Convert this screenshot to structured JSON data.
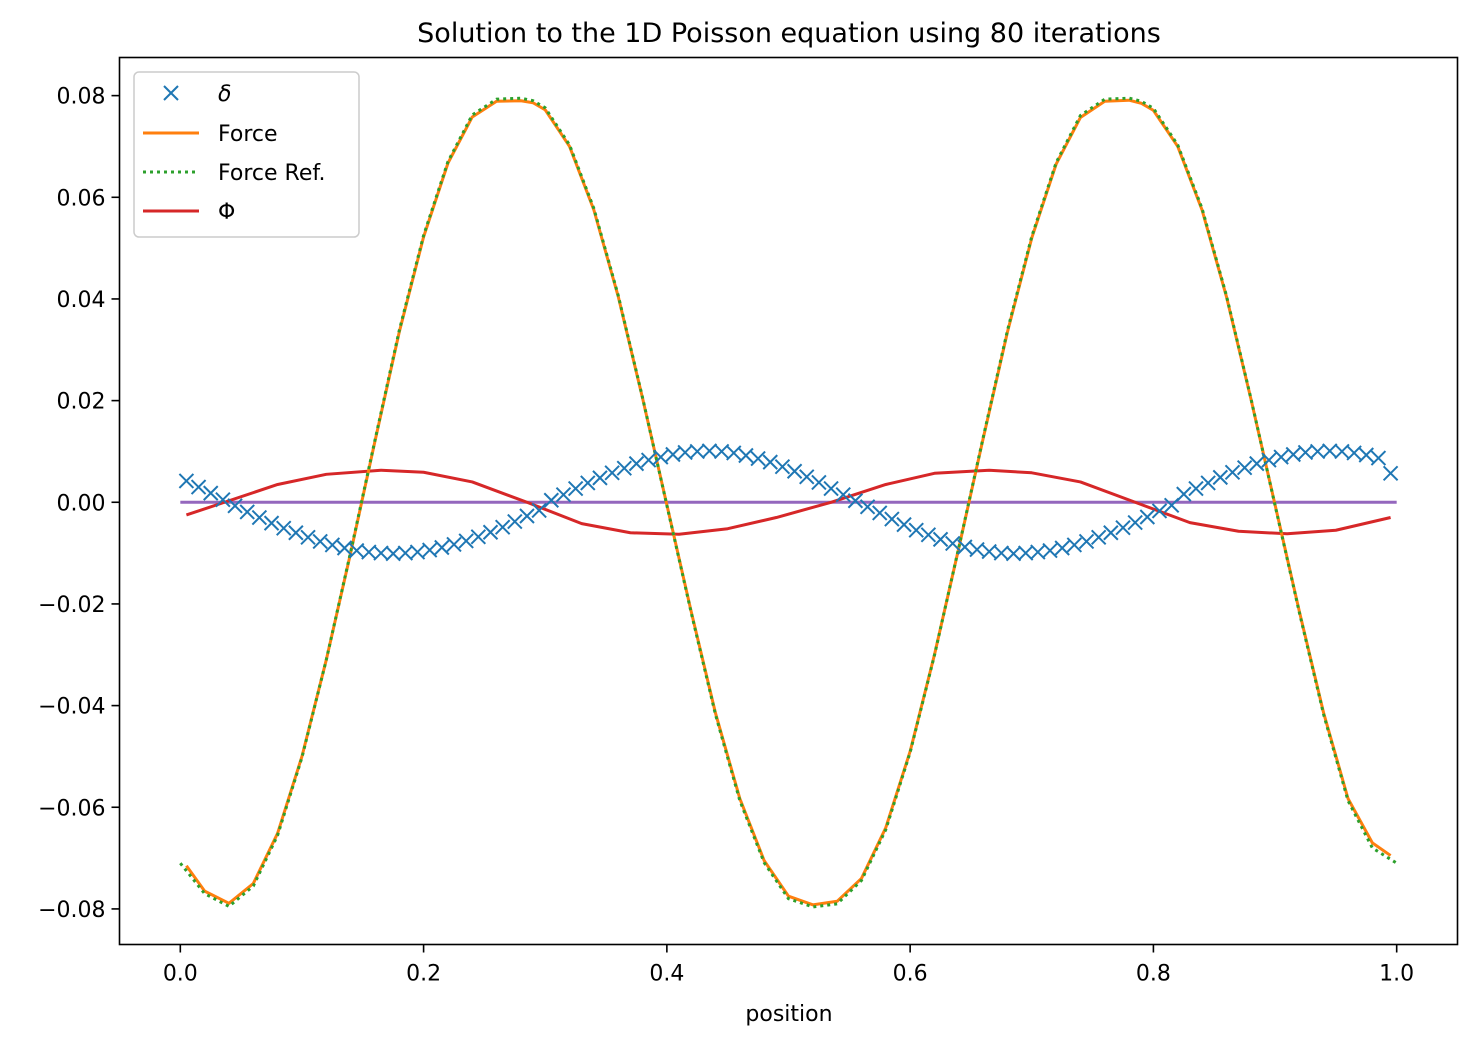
{
  "chart_data": {
    "type": "line",
    "title": "Solution to the 1D Poisson equation using 80 iterations",
    "xlabel": "position",
    "ylabel": "",
    "xlim": [
      -0.05,
      1.05
    ],
    "ylim": [
      -0.087,
      0.0875
    ],
    "xticks": [
      0.0,
      0.2,
      0.4,
      0.6,
      0.8,
      1.0
    ],
    "xtick_labels": [
      "0.0",
      "0.2",
      "0.4",
      "0.6",
      "0.8",
      "1.0"
    ],
    "yticks": [
      -0.08,
      -0.06,
      -0.04,
      -0.02,
      0.0,
      0.02,
      0.04,
      0.06,
      0.08
    ],
    "ytick_labels": [
      "−0.08",
      "−0.06",
      "−0.04",
      "−0.02",
      "0.00",
      "0.02",
      "0.04",
      "0.06",
      "0.08"
    ],
    "grid": false,
    "legend": {
      "position": "top-left",
      "entries": [
        "δ",
        "Force",
        "Force Ref.",
        "Φ"
      ]
    },
    "colors": {
      "delta": "#1f77b4",
      "force": "#ff7f0e",
      "force_ref": "#2ca02c",
      "phi": "#d62728",
      "zero_line": "#9467bd"
    },
    "series": [
      {
        "name": "δ",
        "style": "x-markers",
        "x": [
          0.005,
          0.015,
          0.025,
          0.035,
          0.045,
          0.055,
          0.065,
          0.075,
          0.085,
          0.095,
          0.105,
          0.115,
          0.125,
          0.135,
          0.145,
          0.155,
          0.165,
          0.175,
          0.185,
          0.195,
          0.205,
          0.215,
          0.225,
          0.235,
          0.245,
          0.255,
          0.265,
          0.275,
          0.285,
          0.295,
          0.305,
          0.315,
          0.325,
          0.335,
          0.345,
          0.355,
          0.365,
          0.375,
          0.385,
          0.395,
          0.405,
          0.415,
          0.425,
          0.435,
          0.445,
          0.455,
          0.465,
          0.475,
          0.485,
          0.495,
          0.505,
          0.515,
          0.525,
          0.535,
          0.545,
          0.555,
          0.565,
          0.575,
          0.585,
          0.595,
          0.605,
          0.615,
          0.625,
          0.635,
          0.645,
          0.655,
          0.665,
          0.675,
          0.685,
          0.695,
          0.705,
          0.715,
          0.725,
          0.735,
          0.745,
          0.755,
          0.765,
          0.775,
          0.785,
          0.795,
          0.805,
          0.815,
          0.825,
          0.835,
          0.845,
          0.855,
          0.865,
          0.875,
          0.885,
          0.895,
          0.905,
          0.915,
          0.925,
          0.935,
          0.945,
          0.955,
          0.965,
          0.975,
          0.985,
          0.995
        ],
        "y": [
          0.0042,
          0.003,
          0.0018,
          0.0005,
          -0.0007,
          -0.0019,
          -0.003,
          -0.0041,
          -0.0051,
          -0.006,
          -0.0069,
          -0.0077,
          -0.0084,
          -0.009,
          -0.0095,
          -0.0098,
          -0.01,
          -0.0101,
          -0.01,
          -0.0098,
          -0.0094,
          -0.0089,
          -0.0083,
          -0.0076,
          -0.0068,
          -0.0059,
          -0.0049,
          -0.0038,
          -0.0027,
          -0.0016,
          0.0004,
          0.0015,
          0.0027,
          0.0038,
          0.0048,
          0.0058,
          0.0067,
          0.0076,
          0.0083,
          0.0089,
          0.0094,
          0.0098,
          0.01,
          0.0101,
          0.01,
          0.0097,
          0.0092,
          0.0086,
          0.0079,
          0.007,
          0.0061,
          0.005,
          0.0039,
          0.0027,
          0.0015,
          0.0003,
          -0.0009,
          -0.0021,
          -0.0033,
          -0.0044,
          -0.0055,
          -0.0064,
          -0.0073,
          -0.0081,
          -0.0088,
          -0.0093,
          -0.0097,
          -0.01,
          -0.0101,
          -0.01,
          -0.0098,
          -0.0095,
          -0.009,
          -0.0084,
          -0.0077,
          -0.0069,
          -0.006,
          -0.005,
          -0.004,
          -0.0029,
          -0.0017,
          -0.0006,
          0.0016,
          0.0027,
          0.0038,
          0.0049,
          0.0059,
          0.0068,
          0.0076,
          0.0083,
          0.0089,
          0.0094,
          0.0098,
          0.01,
          0.0101,
          0.01,
          0.0097,
          0.0093,
          0.0087,
          0.0057
        ]
      },
      {
        "name": "Force",
        "style": "solid",
        "x": [
          0.005,
          0.02,
          0.04,
          0.06,
          0.08,
          0.1,
          0.12,
          0.14,
          0.16,
          0.18,
          0.2,
          0.22,
          0.24,
          0.26,
          0.28,
          0.29,
          0.3,
          0.32,
          0.34,
          0.36,
          0.38,
          0.4,
          0.42,
          0.44,
          0.46,
          0.48,
          0.5,
          0.52,
          0.54,
          0.56,
          0.58,
          0.6,
          0.62,
          0.64,
          0.66,
          0.68,
          0.7,
          0.72,
          0.74,
          0.76,
          0.78,
          0.79,
          0.8,
          0.82,
          0.84,
          0.86,
          0.88,
          0.9,
          0.92,
          0.94,
          0.96,
          0.98,
          0.995
        ],
        "y": [
          -0.0715,
          -0.0765,
          -0.0789,
          -0.075,
          -0.0651,
          -0.05,
          -0.031,
          -0.01,
          0.012,
          0.0335,
          0.0522,
          0.0667,
          0.0758,
          0.0789,
          0.079,
          0.0786,
          0.0772,
          0.07,
          0.0575,
          0.0405,
          0.0205,
          -0.0005,
          -0.0215,
          -0.0415,
          -0.0583,
          -0.0705,
          -0.0775,
          -0.0792,
          -0.0785,
          -0.074,
          -0.064,
          -0.049,
          -0.03,
          -0.009,
          0.0125,
          0.0335,
          0.052,
          0.0665,
          0.0757,
          0.0789,
          0.0791,
          0.0785,
          0.0771,
          0.07,
          0.0575,
          0.0405,
          0.0205,
          -0.0005,
          -0.0215,
          -0.0415,
          -0.0583,
          -0.067,
          -0.0695
        ]
      },
      {
        "name": "Force Ref.",
        "style": "dotted",
        "x": [
          0.0,
          0.02,
          0.04,
          0.06,
          0.08,
          0.1,
          0.12,
          0.14,
          0.16,
          0.18,
          0.2,
          0.22,
          0.24,
          0.26,
          0.28,
          0.29,
          0.3,
          0.32,
          0.34,
          0.36,
          0.38,
          0.4,
          0.42,
          0.44,
          0.46,
          0.48,
          0.5,
          0.52,
          0.54,
          0.56,
          0.58,
          0.6,
          0.62,
          0.64,
          0.66,
          0.68,
          0.7,
          0.72,
          0.74,
          0.76,
          0.78,
          0.79,
          0.8,
          0.82,
          0.84,
          0.86,
          0.88,
          0.9,
          0.92,
          0.94,
          0.96,
          0.98,
          1.0
        ],
        "y": [
          -0.071,
          -0.077,
          -0.0795,
          -0.0755,
          -0.0655,
          -0.0502,
          -0.031,
          -0.0098,
          0.0122,
          0.0338,
          0.0525,
          0.067,
          0.0762,
          0.0793,
          0.0795,
          0.079,
          0.0776,
          0.0703,
          0.0578,
          0.0407,
          0.0206,
          -0.0006,
          -0.0217,
          -0.0418,
          -0.0587,
          -0.0709,
          -0.078,
          -0.0796,
          -0.079,
          -0.0744,
          -0.0644,
          -0.0492,
          -0.0301,
          -0.0089,
          0.0127,
          0.0338,
          0.0523,
          0.0668,
          0.0761,
          0.0793,
          0.0795,
          0.0789,
          0.0775,
          0.0703,
          0.0578,
          0.0407,
          0.0206,
          -0.0006,
          -0.0217,
          -0.0418,
          -0.0587,
          -0.068,
          -0.071
        ]
      },
      {
        "name": "Φ",
        "style": "solid",
        "x": [
          0.005,
          0.04,
          0.08,
          0.12,
          0.165,
          0.2,
          0.24,
          0.285,
          0.33,
          0.37,
          0.41,
          0.45,
          0.49,
          0.535,
          0.58,
          0.62,
          0.665,
          0.7,
          0.74,
          0.785,
          0.83,
          0.87,
          0.91,
          0.95,
          0.995
        ],
        "y": [
          -0.0025,
          0.0003,
          0.0035,
          0.0055,
          0.0063,
          0.0059,
          0.004,
          0.0,
          -0.0042,
          -0.006,
          -0.0063,
          -0.0052,
          -0.003,
          0.0,
          0.0035,
          0.0057,
          0.0063,
          0.0058,
          0.004,
          0.0,
          -0.004,
          -0.0057,
          -0.0062,
          -0.0055,
          -0.003
        ]
      },
      {
        "name": "",
        "style": "solid",
        "x": [
          0.0,
          1.0
        ],
        "y": [
          0.0,
          0.0
        ]
      }
    ]
  }
}
